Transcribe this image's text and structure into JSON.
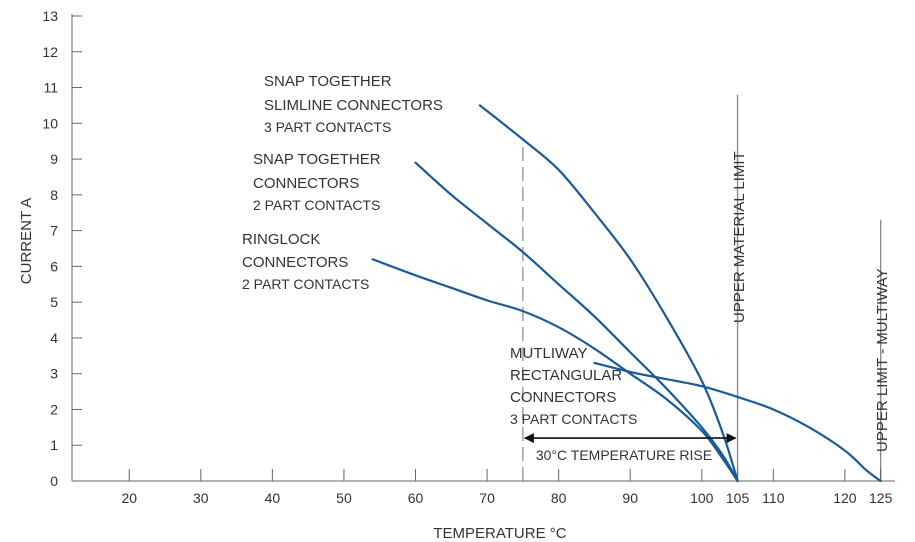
{
  "chart_data": {
    "type": "line",
    "xlabel": "TEMPERATURE °C",
    "ylabel": "CURRENT A",
    "xlim": [
      12,
      127
    ],
    "ylim": [
      0,
      13
    ],
    "x_ticks": [
      {
        "value": 20,
        "label": "20"
      },
      {
        "value": 30,
        "label": "30"
      },
      {
        "value": 40,
        "label": "40"
      },
      {
        "value": 50,
        "label": "50"
      },
      {
        "value": 60,
        "label": "60"
      },
      {
        "value": 70,
        "label": "70"
      },
      {
        "value": 80,
        "label": "80"
      },
      {
        "value": 90,
        "label": "90"
      },
      {
        "value": 100,
        "label": "100"
      },
      {
        "value": 105,
        "label": "105"
      },
      {
        "value": 110,
        "label": "110"
      },
      {
        "value": 120,
        "label": "120"
      },
      {
        "value": 125,
        "label": "125"
      }
    ],
    "y_ticks": [
      0,
      1,
      2,
      3,
      4,
      5,
      6,
      7,
      8,
      9,
      10,
      11,
      12,
      13
    ],
    "series": [
      {
        "label_lines": [
          "SNAP TOGETHER",
          "SLIMLINE CONNECTORS"
        ],
        "label_sub": "3 PART CONTACTS",
        "color": "#1a5b96",
        "points": [
          [
            69,
            10.5
          ],
          [
            75,
            9.55
          ],
          [
            80,
            8.7
          ],
          [
            85,
            7.5
          ],
          [
            90,
            6.2
          ],
          [
            95,
            4.6
          ],
          [
            100,
            2.8
          ],
          [
            103,
            1.3
          ],
          [
            105,
            0
          ]
        ]
      },
      {
        "label_lines": [
          "SNAP TOGETHER",
          "CONNECTORS"
        ],
        "label_sub": "2 PART CONTACTS",
        "color": "#1a5b96",
        "points": [
          [
            60,
            8.9
          ],
          [
            65,
            8.0
          ],
          [
            70,
            7.2
          ],
          [
            75,
            6.4
          ],
          [
            80,
            5.5
          ],
          [
            85,
            4.6
          ],
          [
            90,
            3.6
          ],
          [
            95,
            2.6
          ],
          [
            100,
            1.5
          ],
          [
            103,
            0.7
          ],
          [
            105,
            0
          ]
        ]
      },
      {
        "label_lines": [
          "RINGLOCK",
          "CONNECTORS"
        ],
        "label_sub": "2 PART CONTACTS",
        "color": "#1a5b96",
        "points": [
          [
            54,
            6.2
          ],
          [
            60,
            5.75
          ],
          [
            65,
            5.4
          ],
          [
            70,
            5.05
          ],
          [
            75,
            4.75
          ],
          [
            80,
            4.3
          ],
          [
            85,
            3.7
          ],
          [
            90,
            3.0
          ],
          [
            95,
            2.3
          ],
          [
            100,
            1.4
          ],
          [
            103,
            0.6
          ],
          [
            105,
            0
          ]
        ]
      },
      {
        "label_lines": [
          "MUTLIWAY",
          "RECTANGULAR",
          "CONNECTORS"
        ],
        "label_sub": "3 PART CONTACTS",
        "color": "#1a5b96",
        "points": [
          [
            85,
            3.3
          ],
          [
            90,
            3.05
          ],
          [
            95,
            2.85
          ],
          [
            100,
            2.65
          ],
          [
            105,
            2.35
          ],
          [
            110,
            2.0
          ],
          [
            115,
            1.5
          ],
          [
            120,
            0.85
          ],
          [
            123,
            0.3
          ],
          [
            125,
            0
          ]
        ]
      }
    ],
    "reference_lines": [
      {
        "x": 75,
        "style": "dashed",
        "y_from": 0,
        "y_to": 9.6,
        "color": "#9a9a9a"
      },
      {
        "x": 105,
        "style": "solid",
        "y_from": 0,
        "y_to": 10.8,
        "color": "#8a8a8a",
        "label": "UPPER MATERIAL LIMIT"
      },
      {
        "x": 125,
        "style": "solid",
        "y_from": 0,
        "y_to": 7.3,
        "color": "#8a8a8a",
        "label": "UPPER LIMIT - MULTIWAY"
      }
    ],
    "arrow": {
      "from": 75,
      "to": 105,
      "y": 1.2,
      "label": "30°C TEMPERATURE RISE"
    },
    "colors": {
      "axis": "#666666",
      "curve": "#1a5b96",
      "text": "#333333"
    }
  }
}
